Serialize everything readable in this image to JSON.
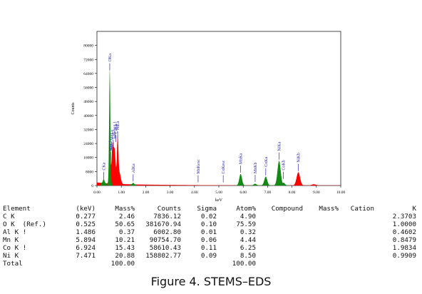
{
  "chart_data": {
    "type": "area",
    "xlabel": "keV",
    "ylabel": "Counts",
    "xlim": [
      0,
      10
    ],
    "ylim": [
      0,
      88000
    ],
    "x_ticks": [
      "0.00",
      "1.00",
      "2.00",
      "3.00",
      "4.00",
      "5.00",
      "6.00",
      "7.00",
      "8.00",
      "9.00",
      "10.00"
    ],
    "y_ticks": [
      "0",
      "8000",
      "16000",
      "24000",
      "32000",
      "40000",
      "48000",
      "56000",
      "64000",
      "72000",
      "80000"
    ],
    "background_color": "#ff0000",
    "peak_color": "#138a13",
    "green_peaks": [
      {
        "x": 0.525,
        "height": 65000,
        "width": 0.025
      },
      {
        "x": 0.277,
        "height": 2400,
        "width": 0.03
      },
      {
        "x": 1.486,
        "height": 900,
        "width": 0.03
      },
      {
        "x": 5.894,
        "height": 6500,
        "width": 0.055
      },
      {
        "x": 6.49,
        "height": 900,
        "width": 0.055
      },
      {
        "x": 6.924,
        "height": 5000,
        "width": 0.06
      },
      {
        "x": 7.471,
        "height": 14000,
        "width": 0.065
      },
      {
        "x": 7.649,
        "height": 1500,
        "width": 0.06
      }
    ],
    "red_peaks": [
      {
        "x": 0.64,
        "height": 22000,
        "width": 0.04
      },
      {
        "x": 0.73,
        "height": 18000,
        "width": 0.04
      },
      {
        "x": 0.85,
        "height": 26000,
        "width": 0.03
      },
      {
        "x": 0.93,
        "height": 6000,
        "width": 0.05
      },
      {
        "x": 8.26,
        "height": 7500,
        "width": 0.07
      },
      {
        "x": 8.9,
        "height": 600,
        "width": 0.08
      }
    ],
    "labels": [
      {
        "text": "OKa",
        "x": 0.525,
        "tip": 65000
      },
      {
        "text": "CKa",
        "x": 0.277,
        "tip": 3000
      },
      {
        "text": "NiLa",
        "x": 0.85,
        "tip": 26000
      },
      {
        "text": "NiLl",
        "x": 0.74,
        "tip": 26000
      },
      {
        "text": "CoLa",
        "x": 0.78,
        "tip": 24000
      },
      {
        "text": "CoLl",
        "x": 0.67,
        "tip": 21000
      },
      {
        "text": "MnLa",
        "x": 0.6,
        "tip": 20000
      },
      {
        "text": "MnLl",
        "x": 0.56,
        "tip": 14000
      },
      {
        "text": "AlKa",
        "x": 1.486,
        "tip": 1500
      },
      {
        "text": "MnKesc",
        "x": 4.15,
        "tip": 1000
      },
      {
        "text": "CoKesc",
        "x": 5.18,
        "tip": 1000
      },
      {
        "text": "MnKa",
        "x": 5.894,
        "tip": 6500
      },
      {
        "text": "MnKb",
        "x": 6.49,
        "tip": 1200
      },
      {
        "text": "CoKa",
        "x": 6.924,
        "tip": 5000
      },
      {
        "text": "NiKa",
        "x": 7.471,
        "tip": 14000
      },
      {
        "text": "CoKb",
        "x": 7.649,
        "tip": 3000
      },
      {
        "text": "NiKb",
        "x": 8.26,
        "tip": 7500
      }
    ]
  },
  "table": {
    "headers": [
      "Element",
      "(keV)",
      "Mass%",
      "Counts",
      "Sigma",
      "Atom%",
      "Compound",
      "Mass%",
      "Cation",
      "K"
    ],
    "rows": [
      {
        "element": "C K",
        "kev": "0.277",
        "mass": "2.46",
        "counts": "7836.12",
        "sigma": "0.02",
        "atom": "4.90",
        "k": "2.3703"
      },
      {
        "element": "O K  (Ref.)",
        "kev": "0.525",
        "mass": "50.65",
        "counts": "381670.94",
        "sigma": "0.10",
        "atom": "75.59",
        "k": "1.0000"
      },
      {
        "element": "Al K !",
        "kev": "1.486",
        "mass": "0.37",
        "counts": "6002.80",
        "sigma": "0.01",
        "atom": "0.32",
        "k": "0.4602"
      },
      {
        "element": "Mn K",
        "kev": "5.894",
        "mass": "10.21",
        "counts": "90754.70",
        "sigma": "0.06",
        "atom": "4.44",
        "k": "0.8479"
      },
      {
        "element": "Co K !",
        "kev": "6.924",
        "mass": "15.43",
        "counts": "58610.43",
        "sigma": "0.11",
        "atom": "6.25",
        "k": "1.9834"
      },
      {
        "element": "Ni K",
        "kev": "7.471",
        "mass": "20.88",
        "counts": "158802.77",
        "sigma": "0.09",
        "atom": "8.50",
        "k": "0.9909"
      }
    ],
    "total": {
      "label": "Total",
      "mass": "100.00",
      "atom": "100.00"
    }
  },
  "caption": "Figure 4. STEMS–EDS"
}
